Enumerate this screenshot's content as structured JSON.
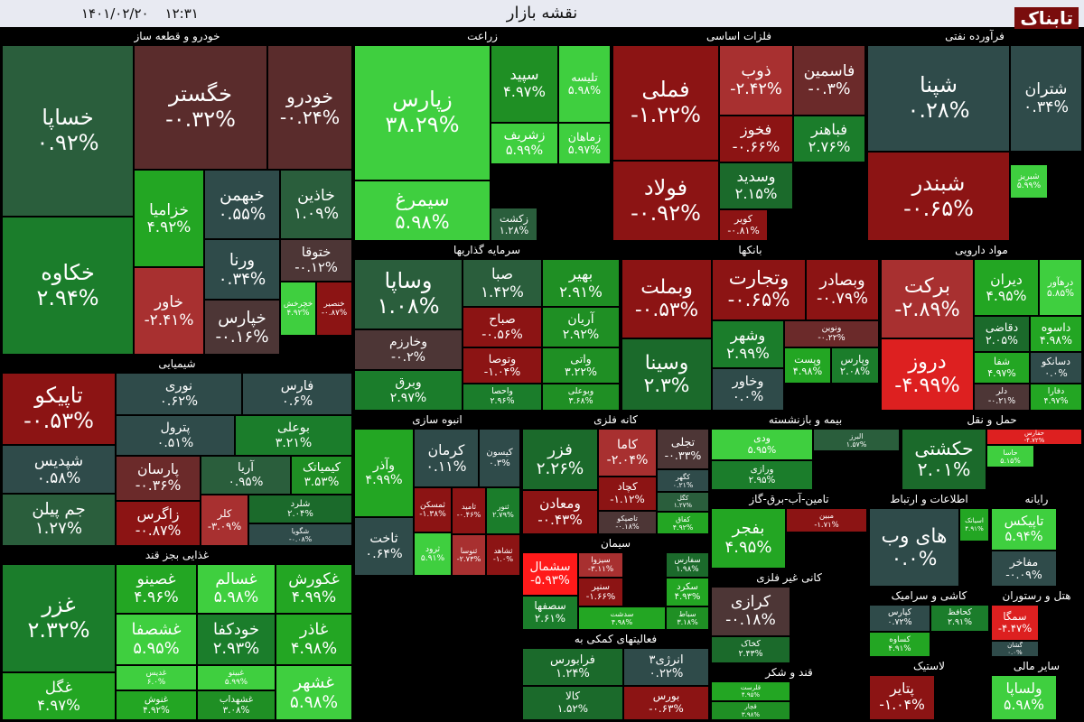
{
  "header": {
    "title": "نقشه بازار",
    "date": "۱۴۰۱/۰۲/۲۰",
    "time": "۱۲:۳۱",
    "logo": "تابناک"
  },
  "sectors": [
    {
      "name": "خودرو و قطعه ساز",
      "tiles": [
        {
          "name": "خساپا",
          "change": "۰.۹۲%",
          "color": "#2a5e3c"
        },
        {
          "name": "خکاوه",
          "change": "۲.۹۴%",
          "color": "#1b7d2b"
        },
        {
          "name": "خگستر",
          "change": "-۰.۳۲%",
          "color": "#5a2c2c"
        },
        {
          "name": "خودرو",
          "change": "-۰.۲۴%",
          "color": "#5a2c2c"
        },
        {
          "name": "خزامیا",
          "change": "۴.۹۲%",
          "color": "#23a623"
        },
        {
          "name": "خبهمن",
          "change": "۰.۵۵%",
          "color": "#2f4b4a"
        },
        {
          "name": "خاذین",
          "change": "۱.۰۹%",
          "color": "#2a5e3c"
        },
        {
          "name": "خاور",
          "change": "-۲.۴۱%",
          "color": "#a83030"
        },
        {
          "name": "ورنا",
          "change": "۰.۳۴%",
          "color": "#2f4b4a"
        },
        {
          "name": "ختوقا",
          "change": "-۰.۱۲%",
          "color": "#4d3636"
        },
        {
          "name": "خپارس",
          "change": "-۰.۱۶%",
          "color": "#4d3636"
        },
        {
          "name": "خچرخش",
          "change": "۴.۹۲%",
          "color": "#3fcf3f"
        },
        {
          "name": "خنصیر",
          "change": "-۰.۸۷%",
          "color": "#8c1414"
        }
      ]
    },
    {
      "name": "زراعت",
      "tiles": [
        {
          "name": "زپارس",
          "change": "۳۸.۲۹%",
          "color": "#3fcf3f"
        },
        {
          "name": "سیمرغ",
          "change": "۵.۹۸%",
          "color": "#3fcf3f"
        },
        {
          "name": "سپید",
          "change": "۴.۹۷%",
          "color": "#1f8f24"
        },
        {
          "name": "تلیسه",
          "change": "۵.۹۸%",
          "color": "#3fcf3f"
        },
        {
          "name": "زشریف",
          "change": "۵.۹۹%",
          "color": "#3fcf3f"
        },
        {
          "name": "زماهان",
          "change": "۵.۹۷%",
          "color": "#3fcf3f"
        },
        {
          "name": "زکشت",
          "change": "۱.۲۸%",
          "color": "#2a5e3c"
        }
      ]
    },
    {
      "name": "فلزات اساسی",
      "tiles": [
        {
          "name": "فملی",
          "change": "-۱.۲۲%",
          "color": "#8c1414"
        },
        {
          "name": "فولاد",
          "change": "-۰.۹۲%",
          "color": "#8c1414"
        },
        {
          "name": "ذوب",
          "change": "-۲.۴۲%",
          "color": "#a83030"
        },
        {
          "name": "فاسمین",
          "change": "-۰.۳%",
          "color": "#6b2a2a"
        },
        {
          "name": "فخوز",
          "change": "-۰.۶۶%",
          "color": "#8c1414"
        },
        {
          "name": "فباهنر",
          "change": "۲.۷۶%",
          "color": "#1b7d2b"
        },
        {
          "name": "وسدید",
          "change": "۲.۱۵%",
          "color": "#1b6a2b"
        },
        {
          "name": "کویر",
          "change": "-۰.۸۱%",
          "color": "#8c1414"
        }
      ]
    },
    {
      "name": "فرآورده نفتی",
      "tiles": [
        {
          "name": "شپنا",
          "change": "۰.۲۸%",
          "color": "#2f4b4a"
        },
        {
          "name": "شتران",
          "change": "۰.۳۴%",
          "color": "#2f4b4a"
        },
        {
          "name": "شبندر",
          "change": "-۰.۶۵%",
          "color": "#8c1414"
        },
        {
          "name": "شبریز",
          "change": "۵.۹۹%",
          "color": "#3fcf3f"
        }
      ]
    },
    {
      "name": "سرمایه گذاریها",
      "tiles": [
        {
          "name": "وساپا",
          "change": "۱.۰۸%",
          "color": "#2a5e3c"
        },
        {
          "name": "وخارزم",
          "change": "-۰.۲%",
          "color": "#4d3636"
        },
        {
          "name": "وبرق",
          "change": "۲.۹۷%",
          "color": "#1b7d2b"
        },
        {
          "name": "صبا",
          "change": "۱.۴۲%",
          "color": "#2a5e3c"
        },
        {
          "name": "بهیر",
          "change": "۲.۹۱%",
          "color": "#1f8f24"
        },
        {
          "name": "صباح",
          "change": "-۰.۵۶%",
          "color": "#8c1414"
        },
        {
          "name": "آریان",
          "change": "۲.۹۲%",
          "color": "#1f8f24"
        },
        {
          "name": "وتوصا",
          "change": "-۱.۰۴%",
          "color": "#8c1414"
        },
        {
          "name": "واتی",
          "change": "۳.۲۲%",
          "color": "#1f8f24"
        },
        {
          "name": "واحصا",
          "change": "۲.۹۶%",
          "color": "#1b7d2b"
        },
        {
          "name": "وبوعلی",
          "change": "۳.۶۸%",
          "color": "#1f8f24"
        }
      ]
    },
    {
      "name": "بانکها",
      "tiles": [
        {
          "name": "وبملت",
          "change": "-۰.۵۳%",
          "color": "#8c1414"
        },
        {
          "name": "وتجارت",
          "change": "-۰.۶۵%",
          "color": "#8c1414"
        },
        {
          "name": "وبصادر",
          "change": "-۰.۷۹%",
          "color": "#8c1414"
        },
        {
          "name": "وسینا",
          "change": "۲.۳%",
          "color": "#1b6a2b"
        },
        {
          "name": "وشهر",
          "change": "۲.۹۹%",
          "color": "#1b7d2b"
        },
        {
          "name": "ونوین",
          "change": "-۰.۲۲%",
          "color": "#6b2a2a"
        },
        {
          "name": "وپست",
          "change": "۴.۹۸%",
          "color": "#23a623"
        },
        {
          "name": "وپارس",
          "change": "۲.۰۸%",
          "color": "#1b7d2b"
        },
        {
          "name": "وخاور",
          "change": "۰.۰%",
          "color": "#2f4b4a"
        }
      ]
    },
    {
      "name": "مواد دارویی",
      "tiles": [
        {
          "name": "برکت",
          "change": "-۲.۸۹%",
          "color": "#a83030"
        },
        {
          "name": "دروز",
          "change": "-۴.۹۹%",
          "color": "#dd2020"
        },
        {
          "name": "دیران",
          "change": "۴.۹۵%",
          "color": "#23a623"
        },
        {
          "name": "درهآور",
          "change": "۵.۸۵%",
          "color": "#3fcf3f"
        },
        {
          "name": "دقاضی",
          "change": "۲.۰۵%",
          "color": "#1b6a2b"
        },
        {
          "name": "داسوه",
          "change": "۴.۹۸%",
          "color": "#23a623"
        },
        {
          "name": "شفا",
          "change": "۴.۹۷%",
          "color": "#23a623"
        },
        {
          "name": "دسانکو",
          "change": "۰.۰%",
          "color": "#2f4b4a"
        },
        {
          "name": "دلر",
          "change": "-۰.۲۱%",
          "color": "#4d3636"
        },
        {
          "name": "دفارا",
          "change": "۴.۹۷%",
          "color": "#23a623"
        }
      ]
    },
    {
      "name": "شیمیایی",
      "tiles": [
        {
          "name": "تاپیکو",
          "change": "-۰.۵۳%",
          "color": "#8c1414"
        },
        {
          "name": "شپدیس",
          "change": "۰.۵۸%",
          "color": "#2f4b4a"
        },
        {
          "name": "جم پیلن",
          "change": "۱.۲۷%",
          "color": "#2a5e3c"
        },
        {
          "name": "نوری",
          "change": "۰.۶۲%",
          "color": "#2f4b4a"
        },
        {
          "name": "فارس",
          "change": "۰.۶%",
          "color": "#2f4b4a"
        },
        {
          "name": "پترول",
          "change": "۰.۵۱%",
          "color": "#2f4b4a"
        },
        {
          "name": "بوعلی",
          "change": "۳.۲۱%",
          "color": "#1b7d2b"
        },
        {
          "name": "پارسان",
          "change": "-۰.۳۶%",
          "color": "#6b2a2a"
        },
        {
          "name": "آریا",
          "change": "۰.۹۵%",
          "color": "#2a5e3c"
        },
        {
          "name": "کیمیاتک",
          "change": "۳.۵۳%",
          "color": "#1f8f24"
        },
        {
          "name": "زاگرس",
          "change": "-۰.۸۷%",
          "color": "#8c1414"
        },
        {
          "name": "کلر",
          "change": "-۳.۰۹%",
          "color": "#a83030"
        },
        {
          "name": "شلرد",
          "change": "۲.۰۴%",
          "color": "#1b6a2b"
        },
        {
          "name": "شگویا",
          "change": "-۰.۰۸%",
          "color": "#2f4b4a"
        }
      ]
    },
    {
      "name": "غذایی بجز قند",
      "tiles": [
        {
          "name": "غزر",
          "change": "۲.۳۲%",
          "color": "#1b7d2b"
        },
        {
          "name": "غگل",
          "change": "۴.۹۷%",
          "color": "#23a623"
        },
        {
          "name": "غصینو",
          "change": "۴.۹۶%",
          "color": "#23a623"
        },
        {
          "name": "غسالم",
          "change": "۵.۹۸%",
          "color": "#3fcf3f"
        },
        {
          "name": "غکورش",
          "change": "۴.۹۹%",
          "color": "#23a623"
        },
        {
          "name": "غشصفا",
          "change": "۵.۹۵%",
          "color": "#3fcf3f"
        },
        {
          "name": "خودکفا",
          "change": "۲.۹۳%",
          "color": "#1b7d2b"
        },
        {
          "name": "غاذر",
          "change": "۴.۹۸%",
          "color": "#23a623"
        },
        {
          "name": "غدیس",
          "change": "۶.۰%",
          "color": "#3fcf3f"
        },
        {
          "name": "غبینو",
          "change": "۵.۹۹%",
          "color": "#3fcf3f"
        },
        {
          "name": "غشهر",
          "change": "۵.۹۸%",
          "color": "#3fcf3f"
        },
        {
          "name": "غنوش",
          "change": "۴.۹۲%",
          "color": "#23a623"
        },
        {
          "name": "غشهداب",
          "change": "۳.۰۸%",
          "color": "#1f8f24"
        }
      ]
    },
    {
      "name": "انبوه سازی",
      "tiles": [
        {
          "name": "وآذر",
          "change": "۴.۹۹%",
          "color": "#23a623"
        },
        {
          "name": "ثاخت",
          "change": "۰.۶۴%",
          "color": "#2f4b4a"
        },
        {
          "name": "کرمان",
          "change": "۰.۱۱%",
          "color": "#2f4b4a"
        },
        {
          "name": "کیسون",
          "change": "۰.۳%",
          "color": "#2f4b4a"
        },
        {
          "name": "ثامید",
          "change": "-۰.۴۶%",
          "color": "#8c1414"
        },
        {
          "name": "ثمسکن",
          "change": "-۱.۳۸%",
          "color": "#8c1414"
        },
        {
          "name": "ثنوسا",
          "change": "-۲.۷۳%",
          "color": "#a83030"
        },
        {
          "name": "ثرود",
          "change": "۵.۹۱%",
          "color": "#3fcf3f"
        },
        {
          "name": "ثنور",
          "change": "۲.۷۹%",
          "color": "#1b7d2b"
        },
        {
          "name": "ثشاهد",
          "change": "-۱.۰%",
          "color": "#8c1414"
        }
      ]
    },
    {
      "name": "کانه فلزی",
      "tiles": [
        {
          "name": "فزر",
          "change": "۲.۲۶%",
          "color": "#1b6a2b"
        },
        {
          "name": "ومعادن",
          "change": "-۰.۴۳%",
          "color": "#8c1414"
        },
        {
          "name": "کاما",
          "change": "-۲.۰۴%",
          "color": "#a83030"
        },
        {
          "name": "تجلی",
          "change": "-۰.۳۳%",
          "color": "#4d3636"
        },
        {
          "name": "کچاد",
          "change": "-۱.۱۲%",
          "color": "#8c1414"
        },
        {
          "name": "کگهر",
          "change": "۰.۲۱%",
          "color": "#2f4b4a"
        },
        {
          "name": "کگل",
          "change": "۱.۲۷%",
          "color": "#2a5e3c"
        },
        {
          "name": "تاصیکو",
          "change": "-۰.۱۸%",
          "color": "#4d3636"
        },
        {
          "name": "کفاق",
          "change": "۴.۹۲%",
          "color": "#23a623"
        }
      ]
    },
    {
      "name": "سیمان",
      "tiles": [
        {
          "name": "سشمال",
          "change": "-۵.۹۳%",
          "color": "#ff1a1a"
        },
        {
          "name": "سصفها",
          "change": "۲.۶۱%",
          "color": "#1b7d2b"
        },
        {
          "name": "سیزوا",
          "change": "-۳.۱۱%",
          "color": "#a83030"
        },
        {
          "name": "سنیر",
          "change": "-۱.۶۶%",
          "color": "#8c1414"
        },
        {
          "name": "سدشت",
          "change": "۴.۹۸%",
          "color": "#23a623"
        },
        {
          "name": "سفارس",
          "change": "۱.۹۸%",
          "color": "#1b6a2b"
        },
        {
          "name": "سکرد",
          "change": "۴.۹۳%",
          "color": "#23a623"
        },
        {
          "name": "سباط",
          "change": "۳.۱۸%",
          "color": "#1f8f24"
        }
      ]
    },
    {
      "name": "فعالیتهای کمکی به",
      "tiles": [
        {
          "name": "فرابورس",
          "change": "۱.۲۴%",
          "color": "#1b6a2b"
        },
        {
          "name": "انرژی۳",
          "change": "۰.۲۲%",
          "color": "#2f4b4a"
        },
        {
          "name": "کالا",
          "change": "۱.۵۲%",
          "color": "#1b6a2b"
        },
        {
          "name": "بورس",
          "change": "-۰.۶۳%",
          "color": "#8c1414"
        }
      ]
    },
    {
      "name": "بیمه و بازنشسته",
      "tiles": [
        {
          "name": "ودی",
          "change": "۵.۹۵%",
          "color": "#3fcf3f"
        },
        {
          "name": "ورازی",
          "change": "۲.۹۵%",
          "color": "#1b7d2b"
        },
        {
          "name": "البرز",
          "change": "۱.۵۷%",
          "color": "#2a5e3c"
        }
      ]
    },
    {
      "name": "حمل و نقل",
      "tiles": [
        {
          "name": "حکشتی",
          "change": "۲.۰۱%",
          "color": "#1b6a2b"
        },
        {
          "name": "حفارس",
          "change": "-۴.۷۲%",
          "color": "#dd2020"
        },
        {
          "name": "حاسا",
          "change": "۵.۱۵%",
          "color": "#3fcf3f"
        }
      ]
    },
    {
      "name": "تامین-آب-برق-گاز",
      "tiles": [
        {
          "name": "بفجر",
          "change": "۴.۹۵%",
          "color": "#23a623"
        },
        {
          "name": "مبین",
          "change": "-۱.۷۱%",
          "color": "#8c1414"
        }
      ]
    },
    {
      "name": "اطلاعات و ارتباط",
      "tiles": [
        {
          "name": "های وب",
          "change": "۰.۰%",
          "color": "#2f4b4a"
        },
        {
          "name": "اسیاتک",
          "change": "۴.۹۱%",
          "color": "#23a623"
        }
      ]
    },
    {
      "name": "رایانه",
      "tiles": [
        {
          "name": "تاپیکس",
          "change": "۵.۹۴%",
          "color": "#3fcf3f"
        },
        {
          "name": "مفاخر",
          "change": "-۰.۰۹%",
          "color": "#2f4b4a"
        }
      ]
    },
    {
      "name": "کانی غیر فلزی",
      "tiles": [
        {
          "name": "کرازی",
          "change": "-۰.۱۸%",
          "color": "#4d3636"
        },
        {
          "name": "کخاک",
          "change": "۲.۴۳%",
          "color": "#1b6a2b"
        }
      ]
    },
    {
      "name": "کاشی و سرامیک",
      "tiles": [
        {
          "name": "کپارس",
          "change": "۰.۷۲%",
          "color": "#2f4b4a"
        },
        {
          "name": "کحافظ",
          "change": "۲.۹۱%",
          "color": "#1b7d2b"
        },
        {
          "name": "کساوه",
          "change": "۴.۹۱%",
          "color": "#23a623"
        }
      ]
    },
    {
      "name": "هتل و رستوران",
      "tiles": [
        {
          "name": "سمگا",
          "change": "-۴.۴۷%",
          "color": "#dd2020"
        },
        {
          "name": "گشان",
          "change": "۰.۰%",
          "color": "#2f4b4a"
        }
      ]
    },
    {
      "name": "قند و شکر",
      "tiles": [
        {
          "name": "قلرست",
          "change": "۴.۹۵%",
          "color": "#23a623"
        },
        {
          "name": "قچار",
          "change": "۳.۹۸%",
          "color": "#1f8f24"
        }
      ]
    },
    {
      "name": "لاستیک",
      "tiles": [
        {
          "name": "پتایر",
          "change": "-۱.۰۴%",
          "color": "#8c1414"
        }
      ]
    },
    {
      "name": "سایر مالی",
      "tiles": [
        {
          "name": "ولساپا",
          "change": "۵.۹۸%",
          "color": "#3fcf3f"
        }
      ]
    }
  ]
}
